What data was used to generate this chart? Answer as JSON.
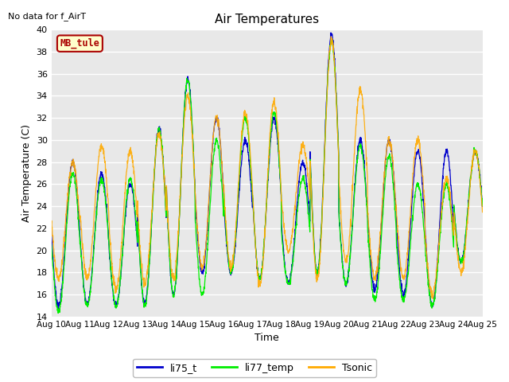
{
  "title": "Air Temperatures",
  "top_left_text": "No data for f_AirT",
  "legend_box_text": "MB_tule",
  "xlabel": "Time",
  "ylabel": "Air Temperature (C)",
  "ylim": [
    14,
    40
  ],
  "yticks": [
    14,
    16,
    18,
    20,
    22,
    24,
    26,
    28,
    30,
    32,
    34,
    36,
    38,
    40
  ],
  "xtick_labels": [
    "Aug 10",
    "Aug 11",
    "Aug 12",
    "Aug 13",
    "Aug 14",
    "Aug 15",
    "Aug 16",
    "Aug 17",
    "Aug 18",
    "Aug 19",
    "Aug 20",
    "Aug 21",
    "Aug 22",
    "Aug 23",
    "Aug 24",
    "Aug 25"
  ],
  "series": {
    "li75_t": {
      "color": "#0000cc",
      "label": "li75_t"
    },
    "li77_temp": {
      "color": "#00ee00",
      "label": "li77_temp"
    },
    "Tsonic": {
      "color": "#ffaa00",
      "label": "Tsonic"
    }
  },
  "bg_color": "#e8e8e8",
  "grid_color": "#ffffff",
  "legend_box_bg": "#ffffcc",
  "legend_box_border": "#aa0000",
  "fig_size": [
    6.4,
    4.8
  ],
  "dpi": 100
}
